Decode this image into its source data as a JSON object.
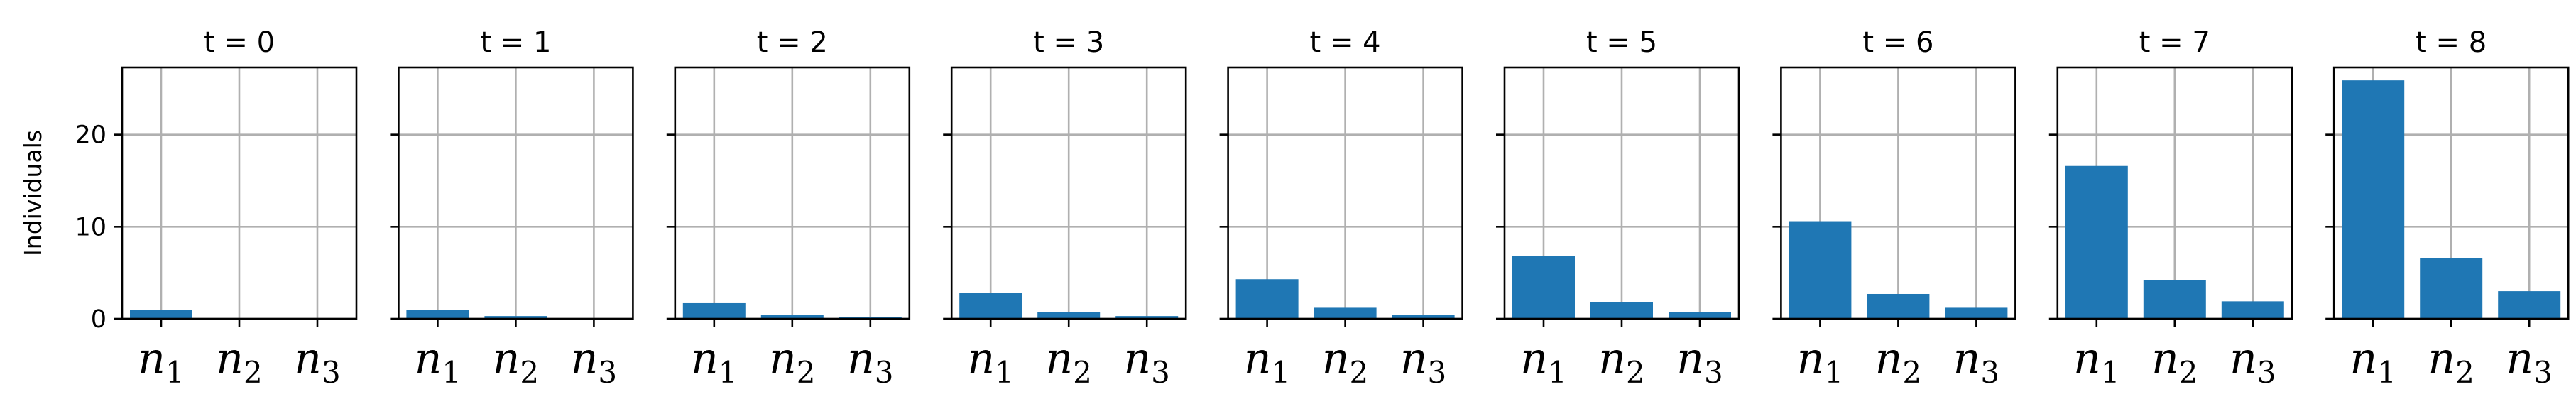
{
  "chart_data": {
    "type": "bar",
    "ylabel": "Individuals",
    "ylim": [
      0,
      27.3
    ],
    "yticks": [
      0,
      10,
      20
    ],
    "grid": true,
    "bar_color": "#1f77b4",
    "categories": [
      {
        "base": "n",
        "sub": "1"
      },
      {
        "base": "n",
        "sub": "2"
      },
      {
        "base": "n",
        "sub": "3"
      }
    ],
    "panels": [
      {
        "title": "t = 0",
        "values": [
          1.0,
          0.0,
          0.0
        ]
      },
      {
        "title": "t = 1",
        "values": [
          1.0,
          0.3,
          0.0
        ]
      },
      {
        "title": "t = 2",
        "values": [
          1.7,
          0.4,
          0.2
        ]
      },
      {
        "title": "t = 3",
        "values": [
          2.8,
          0.7,
          0.3
        ]
      },
      {
        "title": "t = 4",
        "values": [
          4.3,
          1.2,
          0.4
        ]
      },
      {
        "title": "t = 5",
        "values": [
          6.8,
          1.8,
          0.7
        ]
      },
      {
        "title": "t = 6",
        "values": [
          10.6,
          2.7,
          1.2
        ]
      },
      {
        "title": "t = 7",
        "values": [
          16.6,
          4.2,
          1.9
        ]
      },
      {
        "title": "t = 8",
        "values": [
          25.9,
          6.6,
          3.0
        ]
      }
    ]
  }
}
